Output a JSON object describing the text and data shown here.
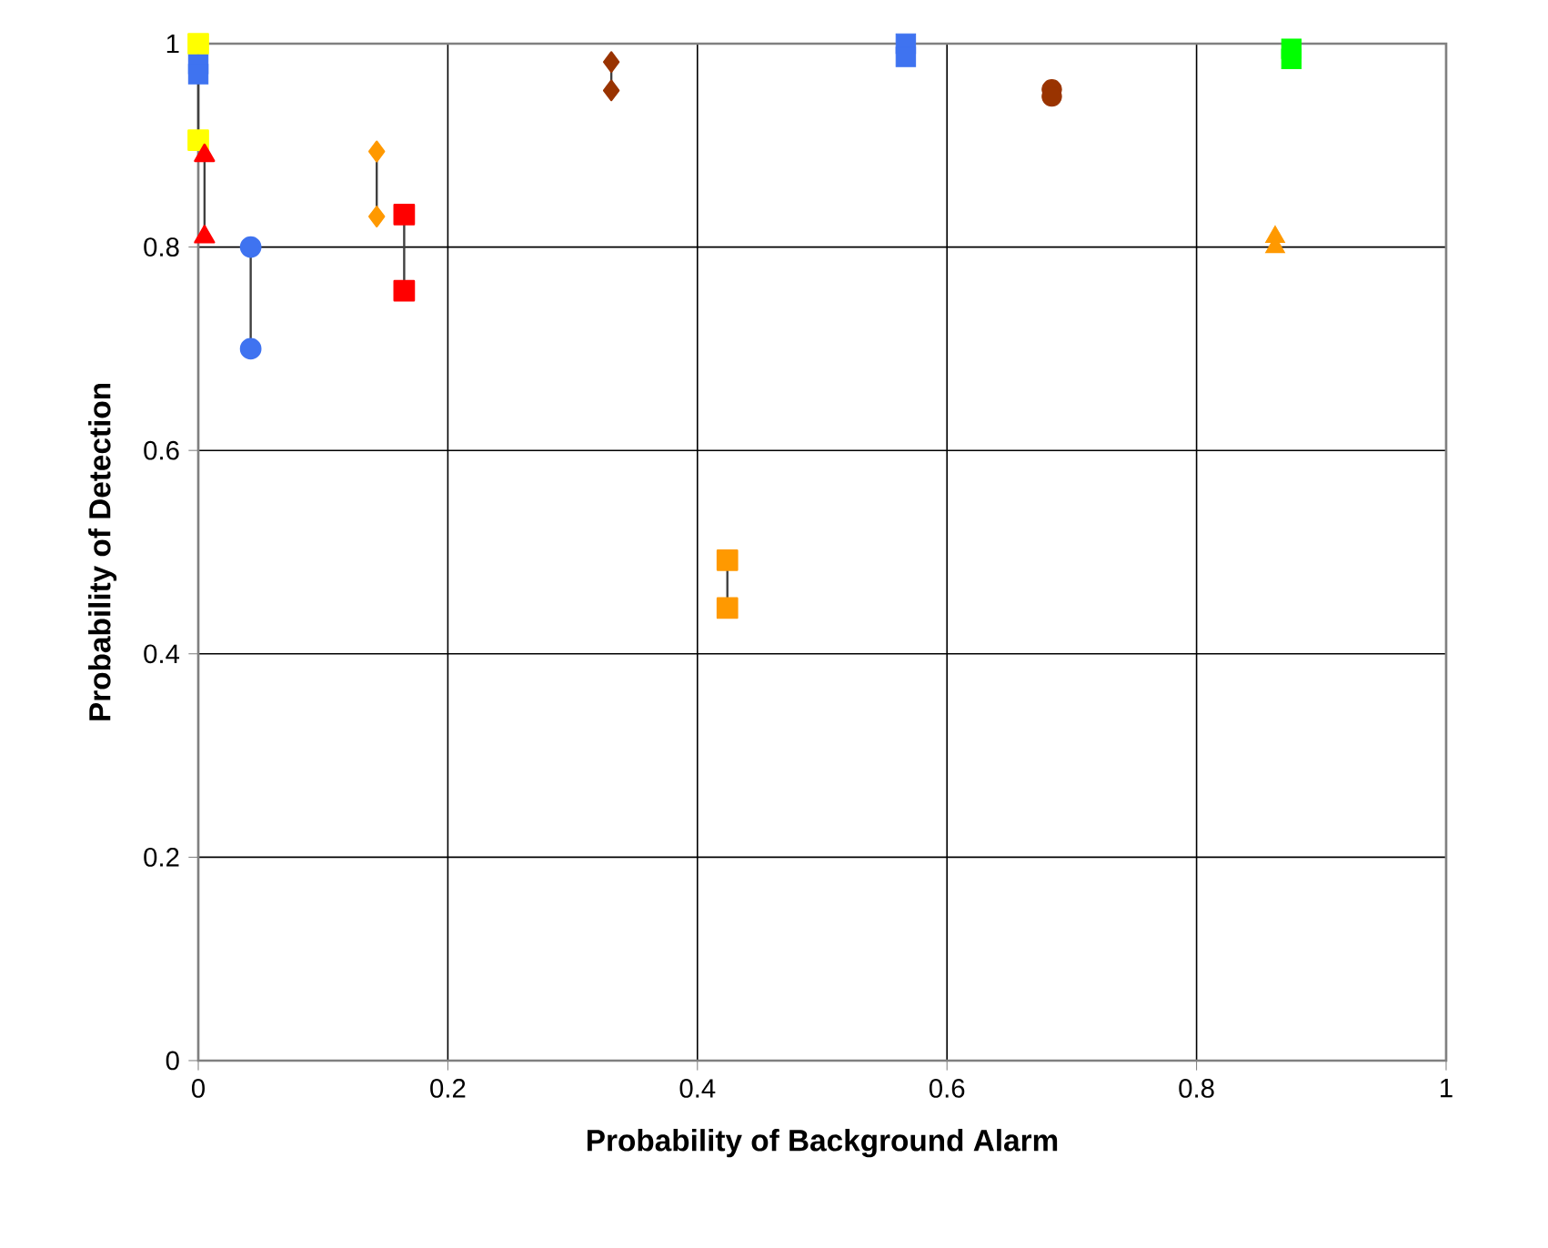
{
  "chart_data": {
    "type": "line",
    "xlabel": "Probability of Background Alarm",
    "ylabel": "Probability of Detection",
    "xlim": [
      0,
      1
    ],
    "ylim": [
      0,
      1
    ],
    "xticks": [
      0,
      0.2,
      0.4,
      0.6,
      0.8,
      1
    ],
    "yticks": [
      0,
      0.2,
      0.4,
      0.6,
      0.8,
      1
    ],
    "grid": true,
    "line_style": "solid",
    "series": [
      {
        "type": "scatter",
        "color": "#3f73f0",
        "marker": "square",
        "x": [
          0,
          0
        ],
        "values": [
          0.98,
          0.97
        ]
      },
      {
        "color": "#ffff00",
        "marker": "square",
        "x": [
          0,
          0
        ],
        "values": [
          1.0,
          0.905
        ]
      },
      {
        "color": "#ff0000",
        "marker": "triangle",
        "x": [
          0.005,
          0.005
        ],
        "values": [
          0.89,
          0.81
        ]
      },
      {
        "color": "#3f73f0",
        "marker": "circle",
        "x": [
          0.042,
          0.042
        ],
        "values": [
          0.8,
          0.7
        ]
      },
      {
        "color": "#ff9900",
        "marker": "diamond",
        "x": [
          0.143,
          0.143
        ],
        "values": [
          0.894,
          0.83
        ]
      },
      {
        "color": "#ff0000",
        "marker": "square",
        "x": [
          0.165,
          0.165
        ],
        "values": [
          0.832,
          0.757
        ]
      },
      {
        "color": "#993300",
        "marker": "diamond",
        "x": [
          0.331,
          0.331
        ],
        "values": [
          0.982,
          0.954
        ]
      },
      {
        "color": "#ff9900",
        "marker": "square",
        "x": [
          0.424,
          0.424
        ],
        "values": [
          0.492,
          0.445
        ]
      },
      {
        "type": "scatter",
        "color": "#3f73f0",
        "marker": "square",
        "x": [
          0.567,
          0.567
        ],
        "values": [
          1.0,
          0.987
        ]
      },
      {
        "type": "scatter",
        "color": "#993300",
        "marker": "circle",
        "x": [
          0.684,
          0.684
        ],
        "values": [
          0.955,
          0.948
        ]
      },
      {
        "type": "scatter",
        "color": "#00ff00",
        "marker": "square",
        "x": [
          0.876,
          0.876
        ],
        "values": [
          0.995,
          0.985
        ]
      },
      {
        "type": "scatter",
        "color": "#ff9900",
        "marker": "triangle",
        "x": [
          0.863,
          0.863
        ],
        "values": [
          0.81,
          0.8
        ]
      }
    ]
  }
}
